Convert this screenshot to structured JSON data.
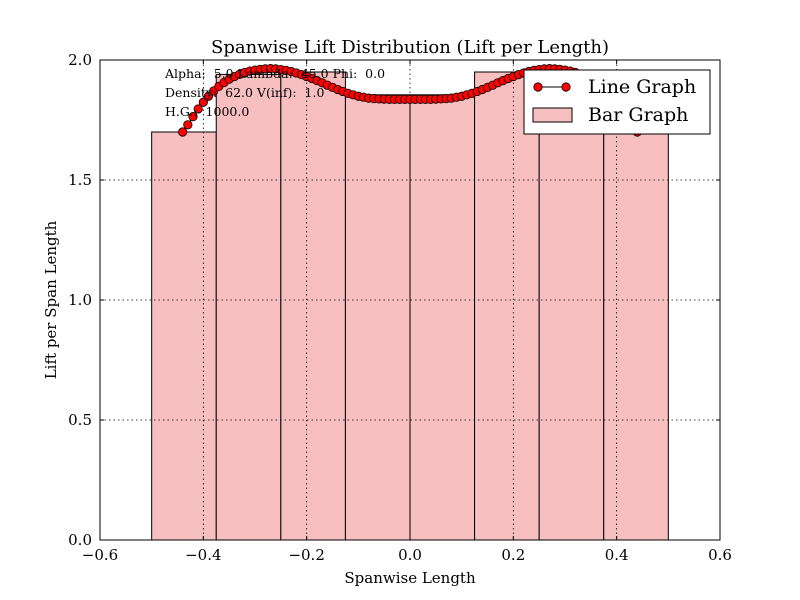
{
  "chart_data": {
    "type": "bar",
    "title": "Spanwise Lift Distribution (Lift per Length)",
    "xlabel": "Spanwise Length",
    "ylabel": "Lift per Span Length",
    "xlim": [
      -0.6,
      0.6
    ],
    "ylim": [
      0.0,
      2.0
    ],
    "xticks": [
      -0.6,
      -0.4,
      -0.2,
      0.0,
      0.2,
      0.4,
      0.6
    ],
    "xtick_labels": [
      "−0.6",
      "−0.4",
      "−0.2",
      "0.0",
      "0.2",
      "0.4",
      "0.6"
    ],
    "yticks": [
      0.0,
      0.5,
      1.0,
      1.5,
      2.0
    ],
    "ytick_labels": [
      "0.0",
      "0.5",
      "1.0",
      "1.5",
      "2.0"
    ],
    "grid": true,
    "legend_position": "top-right",
    "annotations": [
      "Alpha:  5.0 Lambda:  45.0 Phi:  0.0",
      "Density:  62.0 V(inf):  1.0",
      "H.G.:  1000.0"
    ],
    "series": [
      {
        "name": "Line Graph",
        "kind": "line",
        "color": "#ff0000",
        "x": [
          -0.44,
          -0.43,
          -0.42,
          -0.41,
          -0.4,
          -0.39,
          -0.38,
          -0.37,
          -0.36,
          -0.35,
          -0.34,
          -0.33,
          -0.32,
          -0.31,
          -0.3,
          -0.29,
          -0.28,
          -0.27,
          -0.26,
          -0.25,
          -0.24,
          -0.23,
          -0.22,
          -0.21,
          -0.2,
          -0.19,
          -0.18,
          -0.17,
          -0.16,
          -0.15,
          -0.14,
          -0.13,
          -0.12,
          -0.11,
          -0.1,
          -0.09,
          -0.08,
          -0.07,
          -0.06,
          -0.05,
          -0.04,
          -0.03,
          -0.02,
          -0.01,
          0.0,
          0.01,
          0.02,
          0.03,
          0.04,
          0.05,
          0.06,
          0.07,
          0.08,
          0.09,
          0.1,
          0.11,
          0.12,
          0.13,
          0.14,
          0.15,
          0.16,
          0.17,
          0.18,
          0.19,
          0.2,
          0.21,
          0.22,
          0.23,
          0.24,
          0.25,
          0.26,
          0.27,
          0.28,
          0.29,
          0.3,
          0.31,
          0.32,
          0.33,
          0.34,
          0.35,
          0.36,
          0.37,
          0.38,
          0.39,
          0.4,
          0.41,
          0.42,
          0.43,
          0.44
        ],
        "y": [
          1.7,
          1.73,
          1.764,
          1.796,
          1.824,
          1.849,
          1.871,
          1.89,
          1.906,
          1.92,
          1.931,
          1.94,
          1.948,
          1.954,
          1.958,
          1.961,
          1.963,
          1.964,
          1.963,
          1.96,
          1.957,
          1.952,
          1.946,
          1.939,
          1.931,
          1.923,
          1.914,
          1.905,
          1.895,
          1.886,
          1.877,
          1.869,
          1.861,
          1.855,
          1.849,
          1.845,
          1.841,
          1.839,
          1.838,
          1.837,
          1.836,
          1.836,
          1.836,
          1.836,
          1.836,
          1.836,
          1.836,
          1.836,
          1.836,
          1.837,
          1.838,
          1.839,
          1.841,
          1.845,
          1.849,
          1.855,
          1.861,
          1.869,
          1.877,
          1.886,
          1.895,
          1.905,
          1.914,
          1.923,
          1.931,
          1.939,
          1.946,
          1.952,
          1.957,
          1.96,
          1.963,
          1.964,
          1.963,
          1.961,
          1.958,
          1.954,
          1.948,
          1.94,
          1.931,
          1.92,
          1.906,
          1.89,
          1.871,
          1.849,
          1.824,
          1.796,
          1.764,
          1.73,
          1.7
        ]
      },
      {
        "name": "Bar Graph",
        "kind": "bar",
        "color": "#f8bfc0",
        "edgecolor": "#000000",
        "x_left": [
          -0.5,
          -0.375,
          -0.25,
          -0.125,
          0.0,
          0.125,
          0.25,
          0.375
        ],
        "width": 0.125,
        "values": [
          1.7,
          1.94,
          1.95,
          1.855,
          1.855,
          1.95,
          1.94,
          1.7
        ]
      }
    ]
  }
}
